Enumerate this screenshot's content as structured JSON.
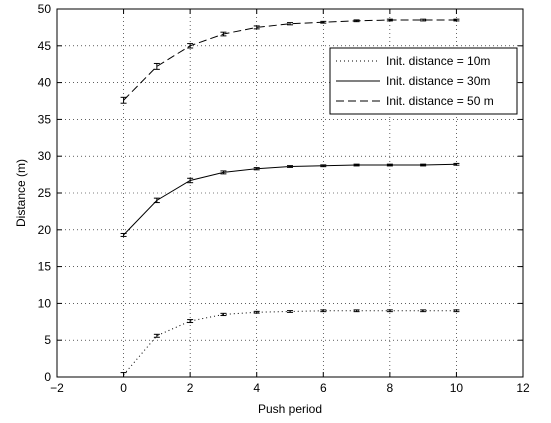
{
  "chart_data": {
    "type": "line",
    "title": "",
    "xlabel": "Push period",
    "ylabel": "Distance (m)",
    "xlim": [
      -2,
      12
    ],
    "ylim": [
      0,
      50
    ],
    "xticks": [
      -2,
      0,
      2,
      4,
      6,
      8,
      10,
      12
    ],
    "yticks": [
      0,
      5,
      10,
      15,
      20,
      25,
      30,
      35,
      40,
      45,
      50
    ],
    "grid": true,
    "legend_position": "top-right",
    "x": [
      0,
      1,
      2,
      3,
      4,
      5,
      6,
      7,
      8,
      9,
      10
    ],
    "series": [
      {
        "name": "Init. distance = 10m",
        "line_style": "dotted",
        "color": "#000000",
        "values": [
          0.3,
          5.6,
          7.6,
          8.5,
          8.8,
          8.9,
          9.0,
          9.0,
          9.0,
          9.0,
          9.0
        ],
        "error": [
          0.3,
          0.2,
          0.2,
          0.15,
          0.1,
          0.1,
          0.1,
          0.1,
          0.1,
          0.1,
          0.1
        ]
      },
      {
        "name": "Init. distance = 30m",
        "line_style": "solid",
        "color": "#000000",
        "values": [
          19.3,
          24.0,
          26.7,
          27.8,
          28.3,
          28.6,
          28.7,
          28.8,
          28.8,
          28.8,
          28.9
        ],
        "error": [
          0.2,
          0.3,
          0.3,
          0.2,
          0.15,
          0.1,
          0.1,
          0.1,
          0.1,
          0.1,
          0.1
        ]
      },
      {
        "name": "Init. distance = 50 m",
        "line_style": "dashed",
        "color": "#000000",
        "values": [
          37.6,
          42.2,
          45.0,
          46.6,
          47.5,
          48.0,
          48.2,
          48.4,
          48.5,
          48.5,
          48.5
        ],
        "error": [
          0.4,
          0.4,
          0.3,
          0.25,
          0.2,
          0.15,
          0.1,
          0.1,
          0.1,
          0.1,
          0.1
        ]
      }
    ]
  }
}
